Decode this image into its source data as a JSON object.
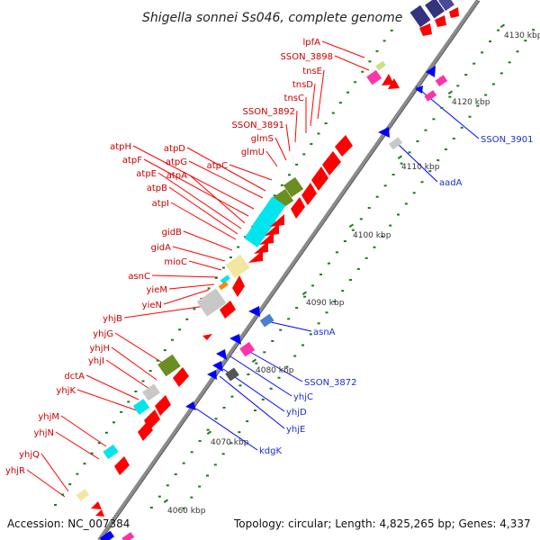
{
  "title": "Shigella sonnei Ss046, complete genome",
  "footer": {
    "accession": "Accession: NC_007384",
    "topology": "Topology: circular; Length: 4,825,265 bp; Genes: 4,337"
  },
  "colors": {
    "forward_label": "#cc0000",
    "reverse_label": "#1a2fd1",
    "backbone": "#8a8a8a",
    "forward_gene": "#ff0000",
    "reverse_gene": "#0000ff",
    "tick_dot": "#1a7a1a"
  },
  "scale_ticks": [
    "4060 kbp",
    "4070 kbp",
    "4080 kbp",
    "4090 kbp",
    "4100 kbp",
    "4110 kbp",
    "4120 kbp",
    "4130 kbp"
  ],
  "forward_genes": [
    "lpfA",
    "SSON_3898",
    "tnsE",
    "tnsD",
    "tnsC",
    "SSON_3892",
    "SSON_3891",
    "glmS",
    "glmU",
    "atpC",
    "atpD",
    "atpG",
    "atpH",
    "atpF",
    "atpA",
    "atpE",
    "atpB",
    "atpI",
    "gidB",
    "gidA",
    "mioC",
    "asnC",
    "yieM",
    "yieN",
    "yhjB",
    "yhjG",
    "yhjH",
    "yhjI",
    "dctA",
    "yhjK",
    "yhjM",
    "yhjN",
    "yhjQ",
    "yhjR"
  ],
  "reverse_genes": [
    "SSON_3901",
    "aadA",
    "asnA",
    "SSON_3872",
    "yhjC",
    "yhjD",
    "yhjE",
    "kdgK"
  ]
}
